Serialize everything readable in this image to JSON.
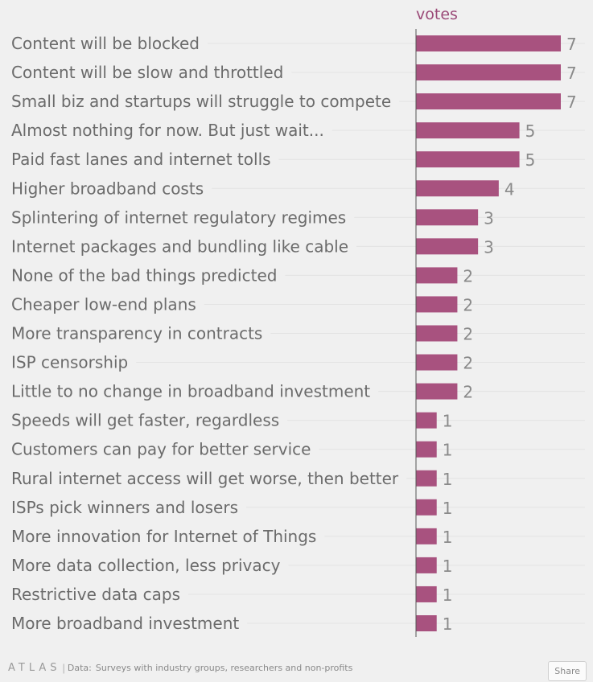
{
  "chart_data": {
    "type": "bar",
    "orientation": "horizontal",
    "series": [
      {
        "name": "votes",
        "values": [
          7,
          7,
          7,
          5,
          5,
          4,
          3,
          3,
          2,
          2,
          2,
          2,
          2,
          1,
          1,
          1,
          1,
          1,
          1,
          1,
          1
        ]
      }
    ],
    "categories": [
      "Content will be blocked",
      "Content will be slow and throttled",
      "Small biz and startups will struggle to compete",
      "Almost nothing for now. But just wait...",
      "Paid fast lanes and internet tolls",
      "Higher broadband costs",
      "Splintering of internet regulatory regimes",
      "Internet packages and bundling like cable",
      "None of the bad things predicted",
      "Cheaper low-end plans",
      "More transparency in contracts",
      "ISP censorship",
      "Little to no change in broadband investment",
      "Speeds will get faster, regardless",
      "Customers can pay for better service",
      "Rural internet access will get worse, then better",
      "ISPs pick winners and losers",
      "More innovation for Internet of Things",
      "More data collection, less privacy",
      "Restrictive data caps",
      "More broadband investment"
    ],
    "xlim": [
      0,
      7
    ],
    "colors": {
      "bar": "#a8527f",
      "series_label": "#9b4a78"
    }
  },
  "footer": {
    "logo": "ATLAS",
    "separator": "|",
    "data_label": "Data:",
    "source": "Surveys with industry groups, researchers and non-profits"
  },
  "share_label": "Share"
}
